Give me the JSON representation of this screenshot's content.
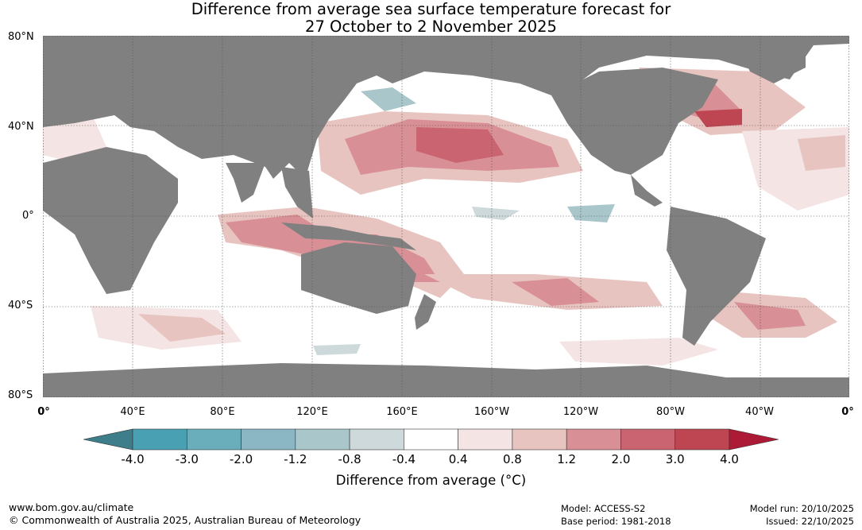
{
  "title": {
    "line1": "Difference from average sea surface temperature forecast for",
    "line2": "27 October to 2 November 2025"
  },
  "axes": {
    "lat_labels": [
      "80°N",
      "40°N",
      "0°",
      "40°S",
      "80°S"
    ],
    "lon_labels": [
      "0°",
      "40°E",
      "80°E",
      "120°E",
      "160°E",
      "160°W",
      "120°W",
      "80°W",
      "40°W",
      "0°"
    ]
  },
  "colorbar": {
    "title": "Difference from average (°C)",
    "tick_labels": [
      "-4.0",
      "-3.0",
      "-2.0",
      "-1.2",
      "-0.8",
      "-0.4",
      "0.4",
      "0.8",
      "1.2",
      "2.0",
      "3.0",
      "4.0"
    ],
    "colors": [
      "#3d7e8a",
      "#4aa0b3",
      "#6aaebb",
      "#8bb7c4",
      "#a9c6cb",
      "#cdd9db",
      "#ffffff",
      "#f4e4e3",
      "#e8c4c1",
      "#d88f95",
      "#c96470",
      "#be4552",
      "#ad1a35"
    ]
  },
  "colors": {
    "land": "#808080",
    "grid": "#555555"
  },
  "footer": {
    "url": "www.bom.gov.au/climate",
    "copyright": "© Commonwealth of Australia 2025, Australian Bureau of Meteorology",
    "model": "Model: ACCESS-S2",
    "base_period": "Base period: 1981-2018",
    "model_run": "Model run: 20/10/2025",
    "issued": "Issued: 22/10/2025"
  }
}
